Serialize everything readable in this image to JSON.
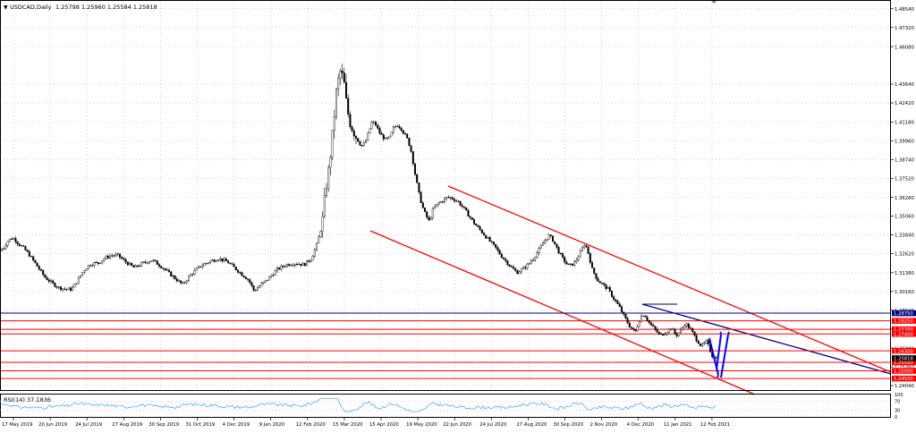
{
  "header": {
    "symbol_label": "USDCAD,Daily",
    "ohlc": "1.25798 1.25960 1.25584 1.25818"
  },
  "rsi_label": "RSI(14) 37.1836",
  "colors": {
    "up_candle": "#ffffff",
    "down_candle": "#000000",
    "channel": "#ff0000",
    "trend": "#000080",
    "arrows": "#0000ff",
    "rsi_line": "#1e90ff",
    "grid": "#c0c0c0"
  },
  "chart_data": {
    "type": "candlestick",
    "instrument": "USDCAD",
    "timeframe": "Daily",
    "last_close": 1.25818,
    "x_ticks": [
      "17 May 2019",
      "20 Jun 2019",
      "24 Jul 2019",
      "27 Aug 2019",
      "30 Sep 2019",
      "31 Oct 2019",
      "4 Dec 2019",
      "9 Jan 2020",
      "12 Feb 2020",
      "15 Mar 2020",
      "15 Apr 2020",
      "19 May 2020",
      "22 Jun 2020",
      "24 Jul 2020",
      "27 Aug 2020",
      "30 Sep 2020",
      "2 Nov 2020",
      "4 Dec 2020",
      "11 Jan 2021",
      "12 Feb 2021"
    ],
    "y_ticks": [
      "1.48540",
      "1.47320",
      "1.46080",
      "1.43640",
      "1.42420",
      "1.41180",
      "1.39960",
      "1.38740",
      "1.37520",
      "1.36280",
      "1.35060",
      "1.33840",
      "1.32620",
      "1.31380",
      "1.30160",
      "1.28940",
      "1.27720",
      "1.26480",
      "1.25260",
      "1.24040"
    ],
    "ylim": [
      1.2375,
      1.4905
    ],
    "price_path": [
      [
        0,
        1.328
      ],
      [
        4,
        1.33
      ],
      [
        8,
        1.334
      ],
      [
        12,
        1.336
      ],
      [
        16,
        1.336
      ],
      [
        20,
        1.333
      ],
      [
        26,
        1.33
      ],
      [
        32,
        1.326
      ],
      [
        38,
        1.321
      ],
      [
        44,
        1.316
      ],
      [
        50,
        1.311
      ],
      [
        58,
        1.307
      ],
      [
        66,
        1.304
      ],
      [
        74,
        1.303
      ],
      [
        80,
        1.303
      ],
      [
        86,
        1.308
      ],
      [
        92,
        1.314
      ],
      [
        98,
        1.318
      ],
      [
        104,
        1.32
      ],
      [
        110,
        1.32
      ],
      [
        116,
        1.323
      ],
      [
        124,
        1.325
      ],
      [
        132,
        1.325
      ],
      [
        140,
        1.321
      ],
      [
        150,
        1.317
      ],
      [
        160,
        1.32
      ],
      [
        170,
        1.322
      ],
      [
        180,
        1.318
      ],
      [
        190,
        1.313
      ],
      [
        198,
        1.309
      ],
      [
        204,
        1.306
      ],
      [
        214,
        1.313
      ],
      [
        224,
        1.318
      ],
      [
        234,
        1.321
      ],
      [
        244,
        1.323
      ],
      [
        254,
        1.321
      ],
      [
        262,
        1.317
      ],
      [
        270,
        1.313
      ],
      [
        278,
        1.309
      ],
      [
        284,
        1.302
      ],
      [
        290,
        1.305
      ],
      [
        300,
        1.31
      ],
      [
        310,
        1.316
      ],
      [
        320,
        1.319
      ],
      [
        330,
        1.32
      ],
      [
        340,
        1.319
      ],
      [
        348,
        1.323
      ],
      [
        354,
        1.332
      ],
      [
        360,
        1.345
      ],
      [
        364,
        1.367
      ],
      [
        368,
        1.383
      ],
      [
        372,
        1.405
      ],
      [
        376,
        1.431
      ],
      [
        380,
        1.445
      ],
      [
        384,
        1.44
      ],
      [
        388,
        1.42
      ],
      [
        392,
        1.41
      ],
      [
        396,
        1.405
      ],
      [
        400,
        1.4
      ],
      [
        404,
        1.396
      ],
      [
        408,
        1.398
      ],
      [
        412,
        1.405
      ],
      [
        416,
        1.412
      ],
      [
        420,
        1.41
      ],
      [
        424,
        1.405
      ],
      [
        428,
        1.402
      ],
      [
        432,
        1.4
      ],
      [
        436,
        1.402
      ],
      [
        440,
        1.408
      ],
      [
        444,
        1.41
      ],
      [
        448,
        1.408
      ],
      [
        452,
        1.404
      ],
      [
        456,
        1.4
      ],
      [
        460,
        1.392
      ],
      [
        464,
        1.378
      ],
      [
        468,
        1.366
      ],
      [
        472,
        1.357
      ],
      [
        476,
        1.351
      ],
      [
        480,
        1.347
      ],
      [
        484,
        1.355
      ],
      [
        490,
        1.359
      ],
      [
        496,
        1.361
      ],
      [
        500,
        1.363
      ],
      [
        506,
        1.362
      ],
      [
        512,
        1.36
      ],
      [
        518,
        1.356
      ],
      [
        524,
        1.351
      ],
      [
        530,
        1.346
      ],
      [
        536,
        1.342
      ],
      [
        542,
        1.338
      ],
      [
        548,
        1.334
      ],
      [
        554,
        1.33
      ],
      [
        560,
        1.325
      ],
      [
        566,
        1.321
      ],
      [
        572,
        1.317
      ],
      [
        578,
        1.314
      ],
      [
        584,
        1.316
      ],
      [
        590,
        1.319
      ],
      [
        596,
        1.323
      ],
      [
        602,
        1.328
      ],
      [
        608,
        1.334
      ],
      [
        614,
        1.338
      ],
      [
        618,
        1.335
      ],
      [
        624,
        1.328
      ],
      [
        630,
        1.322
      ],
      [
        636,
        1.318
      ],
      [
        642,
        1.32
      ],
      [
        648,
        1.326
      ],
      [
        654,
        1.333
      ],
      [
        658,
        1.326
      ],
      [
        662,
        1.316
      ],
      [
        668,
        1.309
      ],
      [
        674,
        1.306
      ],
      [
        680,
        1.303
      ],
      [
        686,
        1.297
      ],
      [
        692,
        1.292
      ],
      [
        698,
        1.285
      ],
      [
        704,
        1.279
      ],
      [
        710,
        1.275
      ],
      [
        716,
        1.285
      ],
      [
        720,
        1.287
      ],
      [
        726,
        1.281
      ],
      [
        732,
        1.277
      ],
      [
        738,
        1.273
      ],
      [
        744,
        1.275
      ],
      [
        750,
        1.278
      ],
      [
        756,
        1.273
      ],
      [
        762,
        1.277
      ],
      [
        766,
        1.281
      ],
      [
        772,
        1.277
      ],
      [
        778,
        1.271
      ],
      [
        784,
        1.266
      ],
      [
        790,
        1.269
      ],
      [
        796,
        1.26
      ],
      [
        801,
        1.2582
      ]
    ],
    "horizontal_levels": [
      {
        "price": "1.25550",
        "color": "#ff0000"
      },
      {
        "price": "1.28250",
        "color": "#ff0000"
      },
      {
        "price": "1.28750",
        "color": "#000080"
      },
      {
        "price": "1.27700",
        "color": "#ff0000"
      },
      {
        "price": "1.27400",
        "color": "#ff0000"
      },
      {
        "price": "1.26300",
        "color": "#ff0000"
      },
      {
        "price": "1.25818",
        "color": "#000000"
      },
      {
        "price": "1.25000",
        "color": "#ff0000"
      },
      {
        "price": "1.24500",
        "color": "#ff0000"
      }
    ],
    "rsi": {
      "period": 14,
      "value": 37.1836,
      "levels": [
        "100",
        "70",
        "30",
        "0"
      ]
    }
  }
}
